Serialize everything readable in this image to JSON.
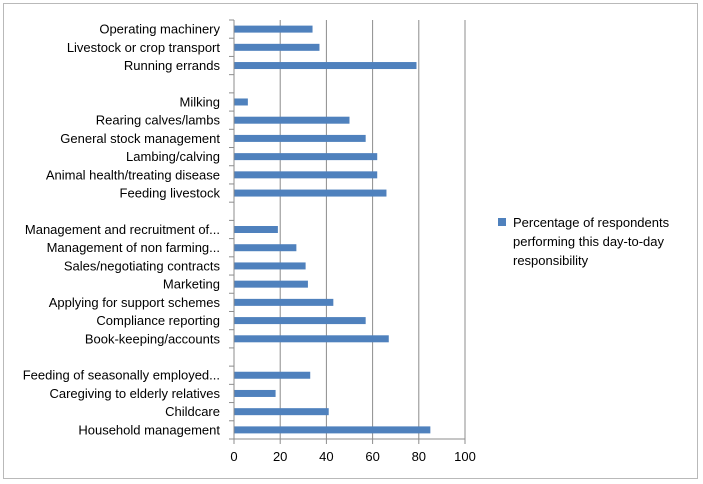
{
  "chart_data": {
    "type": "bar",
    "orientation": "horizontal",
    "categories": [
      "Operating machinery",
      "Livestock or crop transport",
      "Running errands",
      "",
      "Milking",
      "Rearing calves/lambs",
      "General stock management",
      "Lambing/calving",
      "Animal health/treating disease",
      "Feeding livestock",
      "",
      "Management and recruitment of...",
      "Management of non farming...",
      "Sales/negotiating contracts",
      "Marketing",
      "Applying for support schemes",
      "Compliance reporting",
      "Book-keeping/accounts",
      "",
      "Feeding of seasonally employed...",
      "Caregiving to elderly relatives",
      "Childcare",
      "Household management"
    ],
    "series": [
      {
        "name": "Percentage of respondents performing this day-to-day responsibility",
        "color": "#4f81bd",
        "values": [
          34,
          37,
          79,
          null,
          6,
          50,
          57,
          62,
          62,
          66,
          null,
          19,
          27,
          31,
          32,
          43,
          57,
          67,
          null,
          33,
          18,
          41,
          85
        ]
      }
    ],
    "xlim": [
      0,
      100
    ],
    "xticks": [
      0,
      20,
      40,
      60,
      80,
      100
    ],
    "grid": true,
    "legend_position": "right"
  }
}
